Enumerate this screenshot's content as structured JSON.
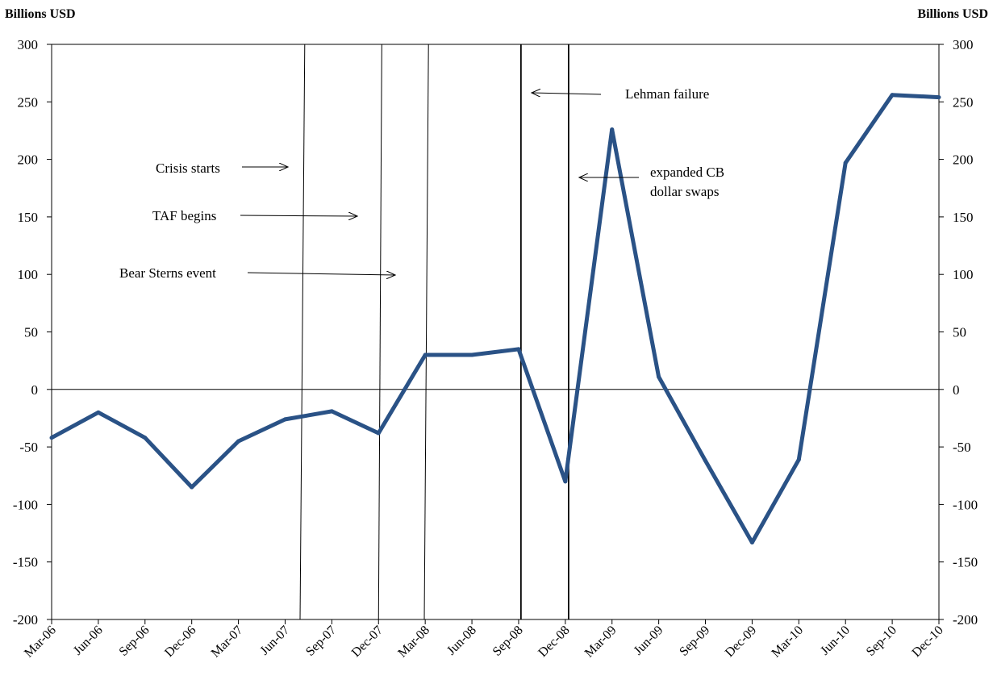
{
  "chart_data": {
    "type": "line",
    "ylabel_left": "Billions USD",
    "ylabel_right": "Billions USD",
    "ylim": [
      -200,
      300
    ],
    "yticks": [
      -200,
      -150,
      -100,
      -50,
      0,
      50,
      100,
      150,
      200,
      250,
      300
    ],
    "categories": [
      "Mar-06",
      "Jun-06",
      "Sep-06",
      "Dec-06",
      "Mar-07",
      "Jun-07",
      "Sep-07",
      "Dec-07",
      "Mar-08",
      "Jun-08",
      "Sep-08",
      "Dec-08",
      "Mar-09",
      "Jun-09",
      "Sep-09",
      "Dec-09",
      "Mar-10",
      "Jun-10",
      "Sep-10",
      "Dec-10"
    ],
    "series": [
      {
        "color": "#2a5286",
        "values": [
          -42,
          -20,
          -42,
          -85,
          -45,
          -26,
          -19,
          -38,
          30,
          30,
          35,
          -80,
          226,
          11,
          -62,
          -133,
          -61,
          197,
          256,
          254
        ]
      }
    ],
    "event_lines": [
      {
        "top_index": 5.42,
        "bottom_index": 5.32
      },
      {
        "top_index": 7.07,
        "bottom_index": 7.0
      },
      {
        "top_index": 8.07,
        "bottom_index": 7.98
      },
      {
        "top_index": 10.05,
        "bottom_index": 10.05
      },
      {
        "top_index": 11.07,
        "bottom_index": 11.07
      }
    ],
    "annotations": [
      {
        "line1": "Crisis starts"
      },
      {
        "line1": "TAF begins"
      },
      {
        "line1": "Bear Sterns event"
      },
      {
        "line1": "Lehman failure"
      },
      {
        "line1": "expanded CB",
        "line2": "dollar swaps"
      }
    ]
  }
}
